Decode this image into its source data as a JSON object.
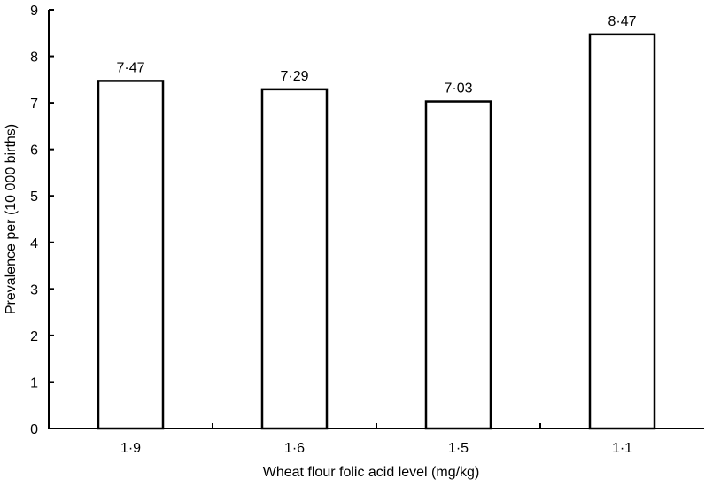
{
  "chart_data": {
    "type": "bar",
    "title": "",
    "xlabel": "Wheat flour folic acid level (mg/kg)",
    "ylabel": "Prevalence per (10 000 births)",
    "categories": [
      "1·9",
      "1·6",
      "1·5",
      "1·1"
    ],
    "values": [
      7.47,
      7.29,
      7.03,
      8.47
    ],
    "data_labels": [
      "7·47",
      "7·29",
      "7·03",
      "8·47"
    ],
    "ylim": [
      0,
      9
    ],
    "yticks": [
      0,
      1,
      2,
      3,
      4,
      5,
      6,
      7,
      8,
      9
    ],
    "grid": false,
    "legend": "none",
    "colors": {
      "bar_fill": "#ffffff",
      "bar_stroke": "#000000",
      "axis": "#000000"
    }
  }
}
